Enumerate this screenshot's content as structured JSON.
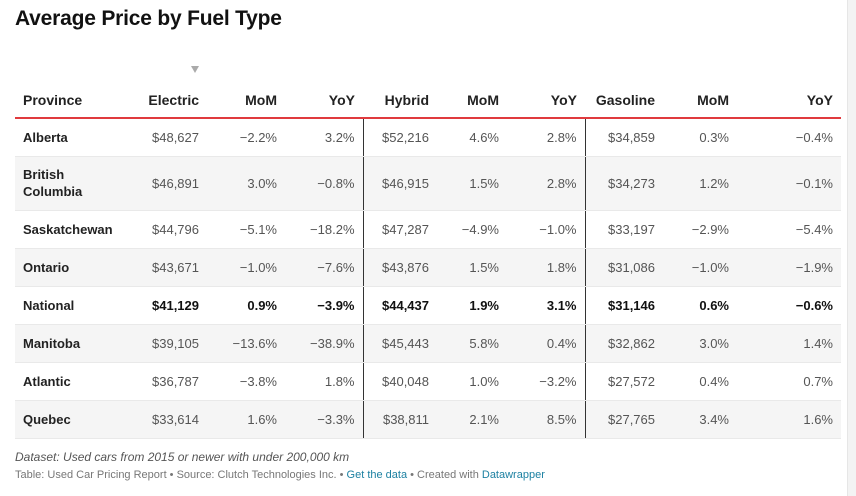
{
  "title": "Average Price by Fuel Type",
  "columns": [
    "Province",
    "Electric",
    "MoM",
    "YoY",
    "Hybrid",
    "MoM",
    "YoY",
    "Gasoline",
    "MoM",
    "YoY"
  ],
  "sort_icon": "sort-desc-triangle-icon",
  "rows": [
    {
      "province": "Alberta",
      "cells": [
        "$48,627",
        "−2.2%",
        "3.2%",
        "$52,216",
        "4.6%",
        "2.8%",
        "$34,859",
        "0.3%",
        "−0.4%"
      ]
    },
    {
      "province": "British Columbia",
      "cells": [
        "$46,891",
        "3.0%",
        "−0.8%",
        "$46,915",
        "1.5%",
        "2.8%",
        "$34,273",
        "1.2%",
        "−0.1%"
      ]
    },
    {
      "province": "Saskatchewan",
      "cells": [
        "$44,796",
        "−5.1%",
        "−18.2%",
        "$47,287",
        "−4.9%",
        "−1.0%",
        "$33,197",
        "−2.9%",
        "−5.4%"
      ]
    },
    {
      "province": "Ontario",
      "cells": [
        "$43,671",
        "−1.0%",
        "−7.6%",
        "$43,876",
        "1.5%",
        "1.8%",
        "$31,086",
        "−1.0%",
        "−1.9%"
      ]
    },
    {
      "province": "National",
      "cells": [
        "$41,129",
        "0.9%",
        "−3.9%",
        "$44,437",
        "1.9%",
        "3.1%",
        "$31,146",
        "0.6%",
        "−0.6%"
      ]
    },
    {
      "province": "Manitoba",
      "cells": [
        "$39,105",
        "−13.6%",
        "−38.9%",
        "$45,443",
        "5.8%",
        "0.4%",
        "$32,862",
        "3.0%",
        "1.4%"
      ]
    },
    {
      "province": "Atlantic",
      "cells": [
        "$36,787",
        "−3.8%",
        "1.8%",
        "$40,048",
        "1.0%",
        "−3.2%",
        "$27,572",
        "0.4%",
        "0.7%"
      ]
    },
    {
      "province": "Quebec",
      "cells": [
        "$33,614",
        "1.6%",
        "−3.3%",
        "$38,811",
        "2.1%",
        "8.5%",
        "$27,765",
        "3.4%",
        "1.6%"
      ]
    }
  ],
  "notes": "Dataset: Used cars from 2015 or newer with under 200,000 km",
  "footer": {
    "prefix": "Table: Used Car Pricing Report • Source: Clutch Technologies Inc. • ",
    "get_data": "Get the data",
    "created_with": " • Created with ",
    "datawrapper": "Datawrapper"
  },
  "colors": {
    "header_rule": "#e03a3e",
    "stripe": "#f5f5f5",
    "link": "#1d81a2"
  },
  "chart_data": {
    "type": "table",
    "title": "Average Price by Fuel Type",
    "columns": [
      "Province",
      "Electric",
      "MoM",
      "YoY",
      "Hybrid",
      "MoM",
      "YoY",
      "Gasoline",
      "MoM",
      "YoY"
    ],
    "sorted_by": "Electric",
    "sort_order": "descending",
    "rows": [
      [
        "Alberta",
        48627,
        -2.2,
        3.2,
        52216,
        4.6,
        2.8,
        34859,
        0.3,
        -0.4
      ],
      [
        "British Columbia",
        46891,
        3.0,
        -0.8,
        46915,
        1.5,
        2.8,
        34273,
        1.2,
        -0.1
      ],
      [
        "Saskatchewan",
        44796,
        -5.1,
        -18.2,
        47287,
        -4.9,
        -1.0,
        33197,
        -2.9,
        -5.4
      ],
      [
        "Ontario",
        43671,
        -1.0,
        -7.6,
        43876,
        1.5,
        1.8,
        31086,
        -1.0,
        -1.9
      ],
      [
        "National",
        41129,
        0.9,
        -3.9,
        44437,
        1.9,
        3.1,
        31146,
        0.6,
        -0.6
      ],
      [
        "Manitoba",
        39105,
        -13.6,
        -38.9,
        45443,
        5.8,
        0.4,
        32862,
        3.0,
        1.4
      ],
      [
        "Atlantic",
        36787,
        -3.8,
        1.8,
        40048,
        1.0,
        -3.2,
        27572,
        0.4,
        0.7
      ],
      [
        "Quebec",
        33614,
        1.6,
        -3.3,
        38811,
        2.1,
        8.5,
        27765,
        3.4,
        1.6
      ]
    ],
    "highlighted_row": "National"
  }
}
